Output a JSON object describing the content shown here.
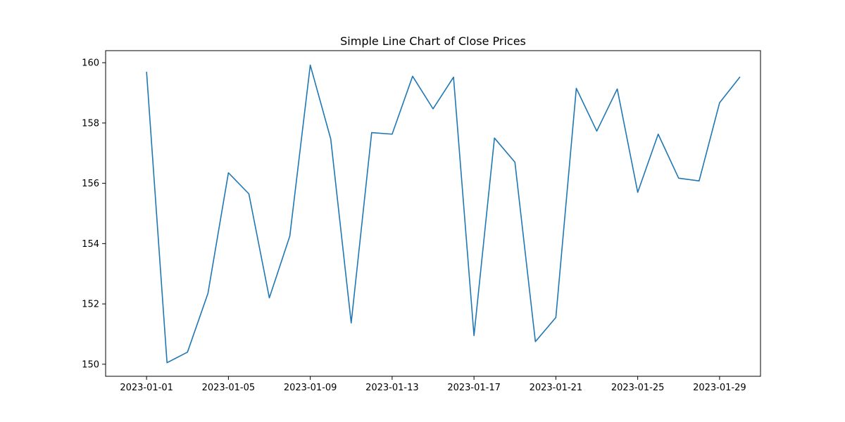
{
  "chart_data": {
    "type": "line",
    "title": "Simple Line Chart of Close Prices",
    "xlabel": "",
    "ylabel": "",
    "x": [
      "2023-01-01",
      "2023-01-02",
      "2023-01-03",
      "2023-01-04",
      "2023-01-05",
      "2023-01-06",
      "2023-01-07",
      "2023-01-08",
      "2023-01-09",
      "2023-01-10",
      "2023-01-11",
      "2023-01-12",
      "2023-01-13",
      "2023-01-14",
      "2023-01-15",
      "2023-01-16",
      "2023-01-17",
      "2023-01-18",
      "2023-01-19",
      "2023-01-20",
      "2023-01-21",
      "2023-01-22",
      "2023-01-23",
      "2023-01-24",
      "2023-01-25",
      "2023-01-26",
      "2023-01-27",
      "2023-01-28",
      "2023-01-29",
      "2023-01-30"
    ],
    "series": [
      {
        "values": [
          159.7,
          150.05,
          150.4,
          152.35,
          156.35,
          155.65,
          152.2,
          154.25,
          159.92,
          157.47,
          151.37,
          157.68,
          157.63,
          159.55,
          158.47,
          159.52,
          150.95,
          157.5,
          156.7,
          150.75,
          151.55,
          159.15,
          157.73,
          159.13,
          155.7,
          157.63,
          156.17,
          156.08,
          158.67,
          159.53
        ],
        "color": "#1f77b4"
      }
    ],
    "xlim": [
      "2022-12-30",
      "2023-01-31"
    ],
    "ylim": [
      149.6,
      160.4
    ],
    "x_ticks": [
      "2023-01-01",
      "2023-01-05",
      "2023-01-09",
      "2023-01-13",
      "2023-01-17",
      "2023-01-21",
      "2023-01-25",
      "2023-01-29"
    ],
    "y_ticks": [
      150,
      152,
      154,
      156,
      158,
      160
    ],
    "y_tick_labels": [
      "150",
      "152",
      "154",
      "156",
      "158",
      "160"
    ],
    "grid": false,
    "legend": "none"
  }
}
